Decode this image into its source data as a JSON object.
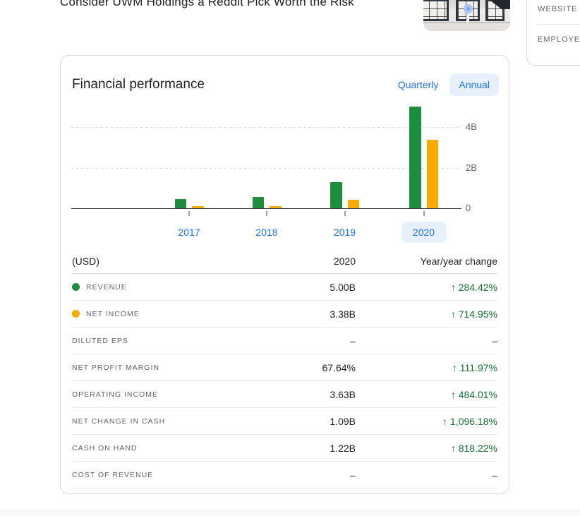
{
  "page": {
    "headline": "Consider UWM Holdings a Reddit Pick Worth the Risk"
  },
  "right_panel": {
    "website_label": "WEBSITE",
    "employees_label": "EMPLOYEES"
  },
  "card": {
    "title": "Financial performance",
    "toggle": {
      "quarterly": "Quarterly",
      "annual": "Annual",
      "selected": "Annual"
    }
  },
  "chart_data": {
    "type": "bar",
    "title": "Financial performance (annual)",
    "unit": "USD, billions",
    "categories": [
      "2017",
      "2018",
      "2019",
      "2020"
    ],
    "series": [
      {
        "name": "Revenue",
        "key": "revenue",
        "color": "#1e8e3e",
        "values": [
          0.46,
          0.55,
          1.3,
          5.0
        ]
      },
      {
        "name": "Net income",
        "key": "net-income",
        "color": "#f9ab00",
        "values": [
          0.12,
          0.11,
          0.41,
          3.38
        ]
      }
    ],
    "ylim": [
      0,
      5.2
    ],
    "yticks": [
      {
        "value": 0,
        "label": "0"
      },
      {
        "value": 2,
        "label": "2B"
      },
      {
        "value": 4,
        "label": "4B"
      }
    ],
    "selected_category": "2020",
    "grid": "dashed-horizontal",
    "legend_position": "table-row-dots"
  },
  "table": {
    "unit_header": "(USD)",
    "year_header": "2020",
    "change_header": "Year/year change",
    "up_arrow": "↑",
    "rows": [
      {
        "label": "REVENUE",
        "dot_color": "#1e8e3e",
        "value": "5.00B",
        "change": "284.42%",
        "direction": "up"
      },
      {
        "label": "NET INCOME",
        "dot_color": "#f9ab00",
        "value": "3.38B",
        "change": "714.95%",
        "direction": "up"
      },
      {
        "label": "DILUTED EPS",
        "value": "–",
        "change": "–",
        "direction": "none"
      },
      {
        "label": "NET PROFIT MARGIN",
        "value": "67.64%",
        "change": "111.97%",
        "direction": "up"
      },
      {
        "label": "OPERATING INCOME",
        "value": "3.63B",
        "change": "484.01%",
        "direction": "up"
      },
      {
        "label": "NET CHANGE IN CASH",
        "value": "1.09B",
        "change": "1,096.18%",
        "direction": "up"
      },
      {
        "label": "CASH ON HAND",
        "value": "1.22B",
        "change": "818.22%",
        "direction": "up"
      },
      {
        "label": "COST OF REVENUE",
        "value": "–",
        "change": "–",
        "direction": "none"
      }
    ]
  },
  "colors": {
    "accent_blue": "#1a73e8",
    "chip_background": "#e8f0fe",
    "positive_green": "#137333",
    "revenue_green": "#1e8e3e",
    "net_income_orange": "#f9ab00"
  }
}
